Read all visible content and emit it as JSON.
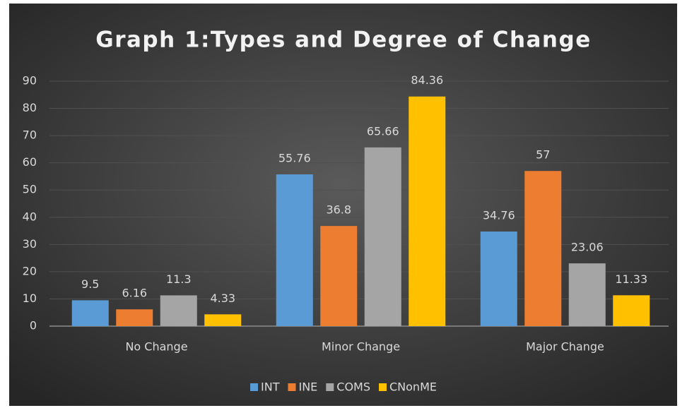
{
  "chart_data": {
    "type": "bar",
    "title": "Graph 1:Types and Degree of Change",
    "categories": [
      "No Change",
      "Minor Change",
      "Major Change"
    ],
    "series": [
      {
        "name": "INT",
        "color": "#5b9bd5",
        "values": [
          9.5,
          55.76,
          34.76
        ]
      },
      {
        "name": "INE",
        "color": "#ed7d31",
        "values": [
          6.16,
          36.8,
          57
        ]
      },
      {
        "name": "COMS",
        "color": "#a5a5a5",
        "values": [
          11.3,
          65.66,
          23.06
        ]
      },
      {
        "name": "CNonME",
        "color": "#ffc000",
        "values": [
          4.33,
          84.36,
          11.33
        ]
      }
    ],
    "ylim": [
      0,
      90
    ],
    "yticks": [
      0,
      10,
      20,
      30,
      40,
      50,
      60,
      70,
      80,
      90
    ],
    "grid": true,
    "legend": "bottom"
  }
}
